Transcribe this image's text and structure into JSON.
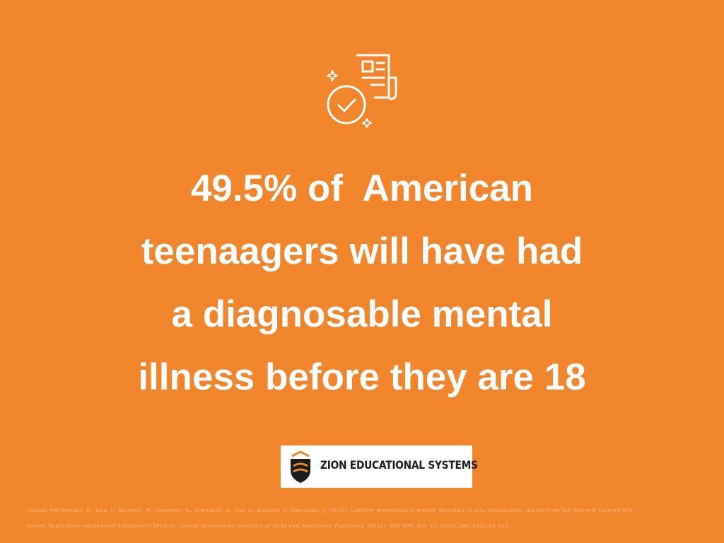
{
  "headline": {
    "lines": [
      "49.5% of  American",
      "teenaagers will have had",
      "a diagnosable mental",
      "illness before they are 18"
    ]
  },
  "logo": {
    "text": "ZION EDUCATIONAL SYSTEMS"
  },
  "source": {
    "lines": [
      "Source: Merikangas, K., Hep, J., Burstein, M., Swanson, S., Avenevoli, S., Cui, L., Benejet, C.,Swendsen, J. (2010). Lifetime prevalence of mental disorders in U.S. adolescents: results from the National Comorbidity",
      "Survey Replication--Adolescent Supplement (NCS-A). Journal of American Academy of Child and Adolescent Psychiatry. 49(10): 980-989. doi: 10.1016/j.jaac.2010.05.017."
    ]
  }
}
